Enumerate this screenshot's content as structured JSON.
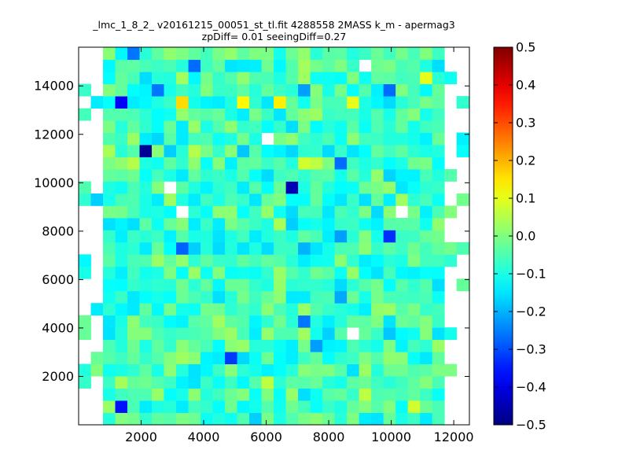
{
  "chart_data": {
    "type": "heatmap",
    "title_line1": "_lmc_1_8_2_ v20161215_00051_st_tl.fit 4288558 2MASS k_m - apermag3",
    "title_line2": "zpDiff= 0.01 seeingDiff=0.27",
    "xlabel": "",
    "ylabel": "",
    "xlim": [
      0,
      12500
    ],
    "ylim": [
      0,
      15600
    ],
    "x_ticks": [
      2000,
      4000,
      6000,
      8000,
      10000,
      12000
    ],
    "x_tick_labels": [
      "2000",
      "4000",
      "6000",
      "8000",
      "10000",
      "12000"
    ],
    "y_ticks": [
      2000,
      4000,
      6000,
      8000,
      10000,
      12000,
      14000
    ],
    "y_tick_labels": [
      "2000",
      "4000",
      "6000",
      "8000",
      "10000",
      "12000",
      "14000"
    ],
    "colorbar": {
      "colormap": "jet",
      "vmin": -0.5,
      "vmax": 0.5,
      "ticks": [
        -0.5,
        -0.4,
        -0.3,
        -0.2,
        -0.1,
        0.0,
        0.1,
        0.2,
        0.3,
        0.4,
        0.5
      ],
      "tick_labels": [
        "−0.5",
        "−0.4",
        "−0.3",
        "−0.2",
        "−0.1",
        "0.0",
        "0.1",
        "0.2",
        "0.3",
        "0.4",
        "0.5"
      ]
    },
    "grid": {
      "cols": 32,
      "rows": 31,
      "x0": 0,
      "cell_width": 390,
      "y0": 0,
      "cell_height": 503
    },
    "outliers": [
      {
        "col": 3,
        "row": 1,
        "value": -0.36
      },
      {
        "col": 12,
        "row": 5,
        "value": -0.32
      },
      {
        "col": 19,
        "row": 6,
        "value": -0.22
      },
      {
        "col": 20,
        "row": 7,
        "value": -0.17
      },
      {
        "col": 18,
        "row": 8,
        "value": -0.26
      },
      {
        "col": 25,
        "row": 7,
        "value": -0.18
      },
      {
        "col": 3,
        "row": 9,
        "value": -0.13
      },
      {
        "col": 7,
        "row": 10,
        "value": -0.12
      },
      {
        "col": 21,
        "row": 10,
        "value": -0.21
      },
      {
        "col": 21,
        "row": 11,
        "value": -0.16
      },
      {
        "col": 3,
        "row": 12,
        "value": -0.14
      },
      {
        "col": 6,
        "row": 12,
        "value": -0.1
      },
      {
        "col": 13,
        "row": 12,
        "value": -0.11
      },
      {
        "col": 26,
        "row": 12,
        "value": -0.13
      },
      {
        "col": 8,
        "row": 14,
        "value": -0.28
      },
      {
        "col": 11,
        "row": 14,
        "value": -0.16
      },
      {
        "col": 18,
        "row": 14,
        "value": -0.2
      },
      {
        "col": 21,
        "row": 15,
        "value": -0.22
      },
      {
        "col": 25,
        "row": 15,
        "value": -0.33
      },
      {
        "col": 3,
        "row": 15,
        "value": -0.14
      },
      {
        "col": 13,
        "row": 17,
        "value": -0.12
      },
      {
        "col": 24,
        "row": 17,
        "value": -0.16
      },
      {
        "col": 17,
        "row": 19,
        "value": -0.45
      },
      {
        "col": 12,
        "row": 20,
        "value": -0.1
      },
      {
        "col": 21,
        "row": 21,
        "value": -0.27
      },
      {
        "col": 5,
        "row": 22,
        "value": -0.48
      },
      {
        "col": 13,
        "row": 22,
        "value": -0.18
      },
      {
        "col": 20,
        "row": 22,
        "value": -0.16
      },
      {
        "col": 3,
        "row": 26,
        "value": -0.38
      },
      {
        "col": 6,
        "row": 27,
        "value": -0.26
      },
      {
        "col": 18,
        "row": 27,
        "value": -0.22
      },
      {
        "col": 25,
        "row": 27,
        "value": -0.27
      },
      {
        "col": 2,
        "row": 26,
        "value": -0.12
      },
      {
        "col": 4,
        "row": 30,
        "value": -0.26
      },
      {
        "col": 9,
        "row": 29,
        "value": -0.27
      },
      {
        "col": 2,
        "row": 22,
        "value": 0.04
      },
      {
        "col": 8,
        "row": 26,
        "value": 0.16
      },
      {
        "col": 13,
        "row": 26,
        "value": 0.13
      },
      {
        "col": 16,
        "row": 26,
        "value": 0.14
      },
      {
        "col": 22,
        "row": 26,
        "value": 0.1
      },
      {
        "col": 28,
        "row": 28,
        "value": 0.1
      },
      {
        "col": 18,
        "row": 21,
        "value": 0.08
      },
      {
        "col": 19,
        "row": 21,
        "value": 0.06
      },
      {
        "col": 9,
        "row": 22,
        "value": 0.05
      },
      {
        "col": 4,
        "row": 21,
        "value": 0.05
      },
      {
        "col": 1,
        "row": 19,
        "value": 0.06
      },
      {
        "col": 16,
        "row": 16,
        "value": 0.04
      },
      {
        "col": 1,
        "row": 3,
        "value": 0.08
      },
      {
        "col": 15,
        "row": 3,
        "value": 0.06
      },
      {
        "col": 23,
        "row": 2,
        "value": 0.06
      },
      {
        "col": 27,
        "row": 1,
        "value": 0.08
      }
    ],
    "missing_cells": [
      {
        "col": 7,
        "row": 19
      },
      {
        "col": 8,
        "row": 17
      },
      {
        "col": 15,
        "row": 23
      },
      {
        "col": 26,
        "row": 17
      },
      {
        "col": 23,
        "row": 29
      },
      {
        "col": 22,
        "row": 7
      }
    ]
  }
}
